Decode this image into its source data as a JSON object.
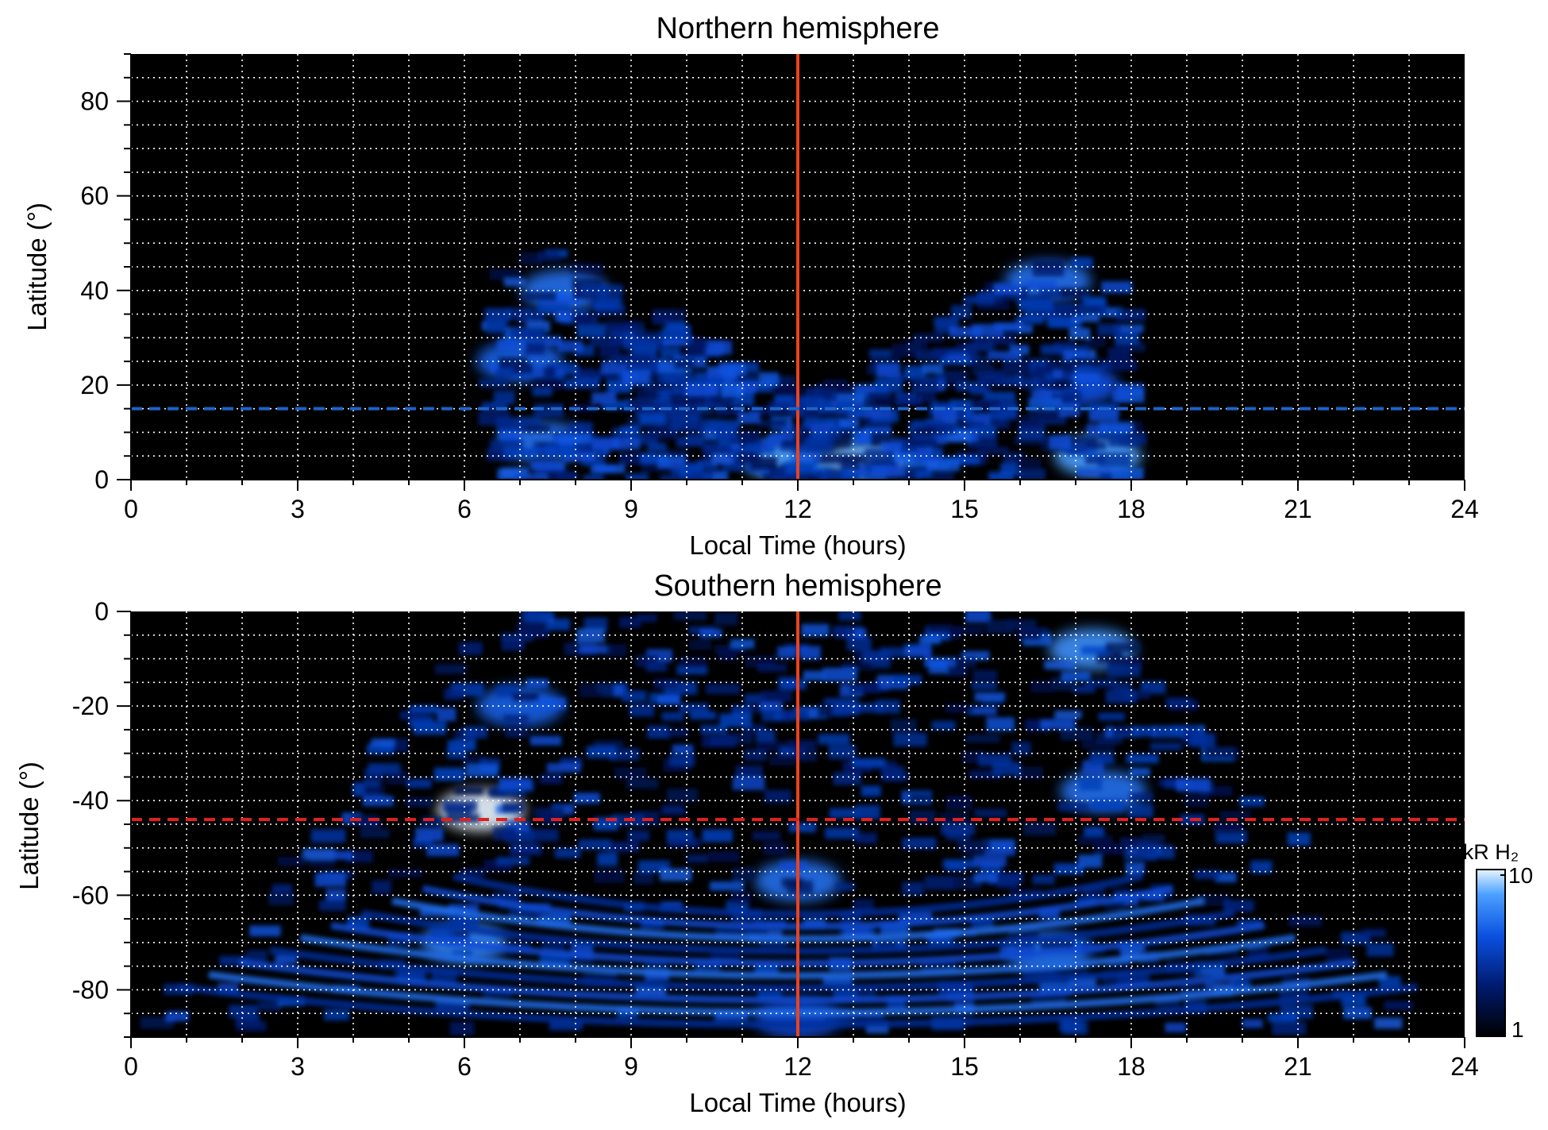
{
  "chart_data": [
    {
      "type": "heatmap",
      "title": "Northern hemisphere",
      "xlabel": "Local Time (hours)",
      "ylabel": "Latitude (°)",
      "xlim": [
        0,
        24
      ],
      "ylim": [
        0,
        90
      ],
      "x_ticks": [
        0,
        3,
        6,
        9,
        12,
        15,
        18,
        21,
        24
      ],
      "x_tick_labels": [
        "0",
        "3",
        "6",
        "9",
        "12",
        "15",
        "18",
        "21",
        "24"
      ],
      "y_ticks": [
        0,
        20,
        40,
        60,
        80
      ],
      "y_tick_labels": [
        "0",
        "20",
        "40",
        "60",
        "80"
      ],
      "grid": true,
      "grid_style": "dotted white, 1 h and 5° spacing",
      "background_color": "#000000",
      "reference_lines": [
        {
          "orientation": "vertical",
          "value": 12,
          "color": "#e8431f",
          "style": "solid"
        },
        {
          "orientation": "horizontal",
          "value": 15,
          "color": "#1c63c8",
          "style": "dashed"
        }
      ],
      "emission_extent": {
        "local_time_range": [
          6.4,
          18.0
        ],
        "max_latitude": 50
      },
      "emission_features": [
        {
          "lt": 7.8,
          "lat": 40,
          "intensity": 0.6
        },
        {
          "lt": 7.0,
          "lat": 25,
          "intensity": 0.55
        },
        {
          "lt": 7.4,
          "lat": 8,
          "intensity": 0.6
        },
        {
          "lt": 10.0,
          "lat": 18,
          "intensity": 0.4
        },
        {
          "lt": 11.8,
          "lat": 4,
          "intensity": 0.75
        },
        {
          "lt": 13.3,
          "lat": 4,
          "intensity": 0.8
        },
        {
          "lt": 16.5,
          "lat": 42,
          "intensity": 0.6
        },
        {
          "lt": 17.0,
          "lat": 20,
          "intensity": 0.5
        },
        {
          "lt": 17.4,
          "lat": 5,
          "intensity": 0.75
        }
      ]
    },
    {
      "type": "heatmap",
      "title": "Southern hemisphere",
      "xlabel": "Local Time (hours)",
      "ylabel": "Latitude (°)",
      "xlim": [
        0,
        24
      ],
      "ylim": [
        -90,
        0
      ],
      "x_ticks": [
        0,
        3,
        6,
        9,
        12,
        15,
        18,
        21,
        24
      ],
      "x_tick_labels": [
        "0",
        "3",
        "6",
        "9",
        "12",
        "15",
        "18",
        "21",
        "24"
      ],
      "y_ticks": [
        0,
        -20,
        -40,
        -60,
        -80
      ],
      "y_tick_labels": [
        "0",
        "-20",
        "-40",
        "-60",
        "-80"
      ],
      "grid": true,
      "grid_style": "dotted white, 1 h and 5° spacing",
      "background_color": "#000000",
      "reference_lines": [
        {
          "orientation": "vertical",
          "value": 12,
          "color": "#e8431f",
          "style": "solid"
        },
        {
          "orientation": "horizontal",
          "value": -44,
          "color": "#e02020",
          "style": "dashed"
        }
      ],
      "emission_extent": {
        "local_time_range": [
          0,
          24
        ],
        "max_latitude": 0
      },
      "emission_features": [
        {
          "lt": 6.3,
          "lat": -42,
          "intensity": 1.0
        },
        {
          "lt": 7.0,
          "lat": -20,
          "intensity": 0.55
        },
        {
          "lt": 6.0,
          "lat": -70,
          "intensity": 0.65
        },
        {
          "lt": 12.0,
          "lat": -57,
          "intensity": 0.6
        },
        {
          "lt": 17.3,
          "lat": -8,
          "intensity": 0.7
        },
        {
          "lt": 17.5,
          "lat": -38,
          "intensity": 0.6
        },
        {
          "lt": 16.5,
          "lat": -72,
          "intensity": 0.6
        },
        {
          "lt": 12.0,
          "lat": -86,
          "intensity": 0.45
        }
      ],
      "colorbar": {
        "label": "kR H₂",
        "min_label": "1",
        "max_label": "10",
        "scale": "log",
        "range": [
          1,
          10
        ],
        "colors": [
          "#000000",
          "#001a6e",
          "#0a50e0",
          "#4aa0ff",
          "#e8f4ff"
        ]
      }
    }
  ]
}
